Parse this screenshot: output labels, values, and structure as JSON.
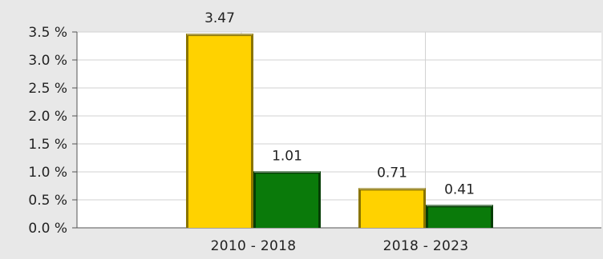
{
  "chart_data": {
    "type": "bar",
    "categories": [
      "2010 - 2018",
      "2018 - 2023"
    ],
    "series": [
      {
        "values": [
          3.47,
          0.71
        ],
        "color": "#ffd200",
        "edge": "#8a7400"
      },
      {
        "values": [
          1.01,
          0.41
        ],
        "color": "#0a7a0a",
        "edge": "#053d05"
      }
    ],
    "data_labels": [
      [
        "3.47",
        "0.71"
      ],
      [
        "1.01",
        "0.41"
      ]
    ],
    "ylim": [
      0,
      3.5
    ],
    "yticks": [
      0.0,
      0.5,
      1.0,
      1.5,
      2.0,
      2.5,
      3.0,
      3.5
    ],
    "ytick_labels": [
      "0.0 %",
      "0.5 %",
      "1.0 %",
      "1.5 %",
      "2.0 %",
      "2.5 %",
      "3.0 %",
      "3.5 %"
    ],
    "grid": true,
    "title": "",
    "xlabel": "",
    "ylabel": ""
  },
  "colors": {
    "background": "#e8e8e8",
    "plot_area": "#ffffff",
    "axis": "#555555",
    "grid": "#d2d2d2"
  }
}
